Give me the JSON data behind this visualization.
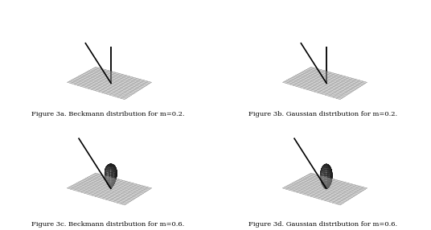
{
  "panels": [
    {
      "label": "Figure 3a. Beckmann distribution for m=0.2.",
      "m": 0.2,
      "type": "beckmann"
    },
    {
      "label": "Figure 3b. Gaussian distribution for m=0.2.",
      "m": 0.2,
      "type": "gaussian"
    },
    {
      "label": "Figure 3c. Beckmann distribution for m=0.6.",
      "m": 0.6,
      "type": "beckmann"
    },
    {
      "label": "Figure 3d. Gaussian distribution for m=0.6.",
      "m": 0.6,
      "type": "gaussian"
    }
  ],
  "bg_color": "#ffffff",
  "label_fontsize": 6.0,
  "figsize": [
    5.36,
    2.86
  ],
  "dpi": 100,
  "elev": 22,
  "azim": -55,
  "n_grid": 16,
  "grid_color": "#555555",
  "grid_lw": 0.25,
  "lobe_edge_color": "#111111",
  "lobe_face_color": "#d0d0d0",
  "lobe_lw": 0.3,
  "ray_color": "#000000",
  "ray_lw": 1.2
}
